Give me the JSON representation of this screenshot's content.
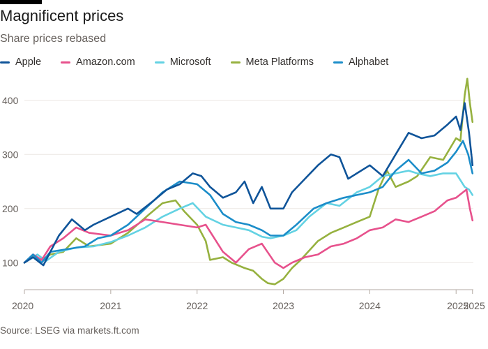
{
  "header": {
    "title": "Magnificent prices",
    "subtitle": "Share prices rebased"
  },
  "footer": {
    "source": "Source: LSEG via markets.ft.com"
  },
  "chart_data": {
    "type": "line",
    "title": "Magnificent prices",
    "subtitle": "Share prices rebased",
    "xlabel": "",
    "ylabel": "",
    "xlim": [
      2020.0,
      2025.2
    ],
    "ylim": [
      50,
      450
    ],
    "yticks": [
      100,
      200,
      300,
      400
    ],
    "xticks": [
      {
        "value": 2020.0,
        "label": "2020"
      },
      {
        "value": 2021.0,
        "label": "2021"
      },
      {
        "value": 2022.0,
        "label": "2022"
      },
      {
        "value": 2023.0,
        "label": "2023"
      },
      {
        "value": 2024.0,
        "label": "2024"
      },
      {
        "value": 2025.0,
        "label": "2025"
      },
      {
        "value": 2025.19,
        "label": "2025"
      }
    ],
    "grid": "horizontal",
    "legend": "top-left",
    "series": [
      {
        "name": "Meta Platforms",
        "color": "#96b13f",
        "x": [
          2020.0,
          2020.1,
          2020.2,
          2020.3,
          2020.45,
          2020.6,
          2020.75,
          2021.0,
          2021.2,
          2021.45,
          2021.6,
          2021.75,
          2021.85,
          2022.0,
          2022.1,
          2022.15,
          2022.3,
          2022.4,
          2022.55,
          2022.65,
          2022.75,
          2022.82,
          2022.9,
          2023.0,
          2023.1,
          2023.2,
          2023.4,
          2023.55,
          2023.7,
          2023.85,
          2024.0,
          2024.1,
          2024.2,
          2024.3,
          2024.45,
          2024.55,
          2024.7,
          2024.85,
          2025.0,
          2025.05,
          2025.1,
          2025.13,
          2025.16,
          2025.19
        ],
        "y": [
          100,
          112,
          105,
          115,
          120,
          145,
          130,
          135,
          155,
          190,
          210,
          215,
          195,
          170,
          140,
          105,
          110,
          100,
          90,
          85,
          70,
          62,
          60,
          70,
          90,
          105,
          140,
          155,
          165,
          175,
          185,
          235,
          270,
          240,
          250,
          260,
          295,
          290,
          330,
          325,
          410,
          440,
          395,
          360
        ]
      },
      {
        "name": "Microsoft",
        "color": "#63d2e3",
        "x": [
          2020.0,
          2020.15,
          2020.25,
          2020.4,
          2020.6,
          2020.8,
          2021.0,
          2021.2,
          2021.4,
          2021.6,
          2021.8,
          2021.95,
          2022.1,
          2022.3,
          2022.45,
          2022.6,
          2022.75,
          2022.85,
          2023.0,
          2023.15,
          2023.3,
          2023.5,
          2023.65,
          2023.85,
          2024.0,
          2024.15,
          2024.3,
          2024.45,
          2024.55,
          2024.7,
          2024.85,
          2025.0,
          2025.1,
          2025.15,
          2025.19
        ],
        "y": [
          100,
          115,
          103,
          120,
          128,
          130,
          138,
          150,
          165,
          185,
          200,
          210,
          185,
          170,
          165,
          160,
          148,
          145,
          150,
          160,
          185,
          210,
          205,
          230,
          240,
          260,
          265,
          270,
          265,
          260,
          265,
          265,
          240,
          235,
          225
        ]
      },
      {
        "name": "Amazon.com",
        "color": "#e7518c",
        "x": [
          2020.0,
          2020.1,
          2020.2,
          2020.3,
          2020.45,
          2020.6,
          2020.75,
          2021.0,
          2021.2,
          2021.4,
          2021.6,
          2021.8,
          2022.0,
          2022.1,
          2022.2,
          2022.3,
          2022.45,
          2022.6,
          2022.75,
          2022.9,
          2023.0,
          2023.1,
          2023.25,
          2023.4,
          2023.55,
          2023.7,
          2023.85,
          2024.0,
          2024.15,
          2024.3,
          2024.45,
          2024.6,
          2024.75,
          2024.9,
          2025.0,
          2025.08,
          2025.12,
          2025.16,
          2025.19
        ],
        "y": [
          100,
          115,
          105,
          130,
          145,
          165,
          155,
          150,
          160,
          180,
          175,
          170,
          165,
          170,
          145,
          120,
          100,
          125,
          135,
          100,
          90,
          100,
          110,
          115,
          130,
          135,
          145,
          160,
          165,
          180,
          175,
          185,
          195,
          215,
          220,
          230,
          235,
          200,
          178
        ]
      },
      {
        "name": "Alphabet",
        "color": "#1b8dc9",
        "x": [
          2020.0,
          2020.1,
          2020.2,
          2020.3,
          2020.5,
          2020.7,
          2020.85,
          2021.0,
          2021.2,
          2021.4,
          2021.6,
          2021.8,
          2022.0,
          2022.15,
          2022.3,
          2022.45,
          2022.6,
          2022.75,
          2022.85,
          2023.0,
          2023.15,
          2023.35,
          2023.5,
          2023.7,
          2023.85,
          2024.0,
          2024.15,
          2024.3,
          2024.45,
          2024.6,
          2024.75,
          2024.9,
          2025.0,
          2025.08,
          2025.14,
          2025.19
        ],
        "y": [
          100,
          115,
          100,
          120,
          125,
          130,
          145,
          150,
          170,
          200,
          230,
          250,
          245,
          225,
          190,
          175,
          170,
          160,
          150,
          150,
          170,
          200,
          210,
          220,
          225,
          230,
          240,
          270,
          290,
          265,
          270,
          285,
          305,
          325,
          300,
          265
        ]
      },
      {
        "name": "Apple",
        "color": "#0f5499",
        "x": [
          2020.0,
          2020.1,
          2020.22,
          2020.3,
          2020.4,
          2020.55,
          2020.7,
          2020.8,
          2021.0,
          2021.2,
          2021.3,
          2021.5,
          2021.65,
          2021.8,
          2021.95,
          2022.05,
          2022.15,
          2022.3,
          2022.45,
          2022.55,
          2022.65,
          2022.75,
          2022.85,
          2023.0,
          2023.1,
          2023.25,
          2023.4,
          2023.55,
          2023.65,
          2023.75,
          2023.85,
          2024.0,
          2024.15,
          2024.3,
          2024.45,
          2024.6,
          2024.75,
          2024.9,
          2025.0,
          2025.05,
          2025.1,
          2025.15,
          2025.19
        ],
        "y": [
          100,
          110,
          95,
          120,
          150,
          180,
          160,
          170,
          185,
          200,
          190,
          215,
          235,
          245,
          265,
          260,
          240,
          220,
          230,
          250,
          210,
          240,
          200,
          200,
          230,
          255,
          280,
          300,
          295,
          255,
          265,
          280,
          260,
          300,
          340,
          330,
          335,
          355,
          370,
          345,
          395,
          340,
          280
        ]
      }
    ]
  }
}
